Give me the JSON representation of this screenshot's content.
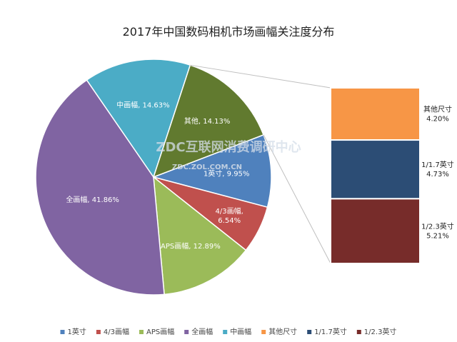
{
  "chart_data": {
    "type": "pie",
    "title": "2017年中国数码相机市场画幅关注度分布",
    "pie": {
      "slices": [
        {
          "name": "1英寸",
          "value": 9.95,
          "color": "#4f81bd",
          "label": "1英寸, 9.95%"
        },
        {
          "name": "4/3画幅",
          "value": 6.54,
          "color": "#c0504d",
          "label_lines": [
            "4/3画幅,",
            "6.54%"
          ]
        },
        {
          "name": "APS画幅",
          "value": 12.89,
          "color": "#9bbb59",
          "label": "APS画幅, 12.89%"
        },
        {
          "name": "全画幅",
          "value": 41.86,
          "color": "#8064a2",
          "label": "全画幅, 41.86%"
        },
        {
          "name": "中画幅",
          "value": 14.63,
          "color": "#4bacc6",
          "label": "中画幅, 14.63%"
        },
        {
          "name": "其他",
          "value": 14.13,
          "color": "#617a2f",
          "label": "其他, 14.13%"
        }
      ]
    },
    "bar_of_pie": {
      "segments": [
        {
          "name": "其他尺寸",
          "value": 4.2,
          "color": "#f79646",
          "value_label": "4.20%"
        },
        {
          "name": "1/1.7英寸",
          "value": 4.73,
          "color": "#2c4d75",
          "value_label": "4.73%"
        },
        {
          "name": "1/2.3英寸",
          "value": 5.21,
          "color": "#772c2a",
          "value_label": "5.21%"
        }
      ]
    },
    "legend": {
      "position": "bottom",
      "items": [
        {
          "name": "1英寸",
          "color": "#4f81bd"
        },
        {
          "name": "4/3画幅",
          "color": "#c0504d"
        },
        {
          "name": "APS画幅",
          "color": "#9bbb59"
        },
        {
          "name": "全画幅",
          "color": "#8064a2"
        },
        {
          "name": "中画幅",
          "color": "#4bacc6"
        },
        {
          "name": "其他尺寸",
          "color": "#f79646"
        },
        {
          "name": "1/1.7英寸",
          "color": "#2c4d75"
        },
        {
          "name": "1/2.3英寸",
          "color": "#772c2a"
        }
      ]
    }
  },
  "watermark": {
    "main": "ZDC互联网消费调研中心",
    "sub": "ZDC.ZOL.COM.CN"
  }
}
